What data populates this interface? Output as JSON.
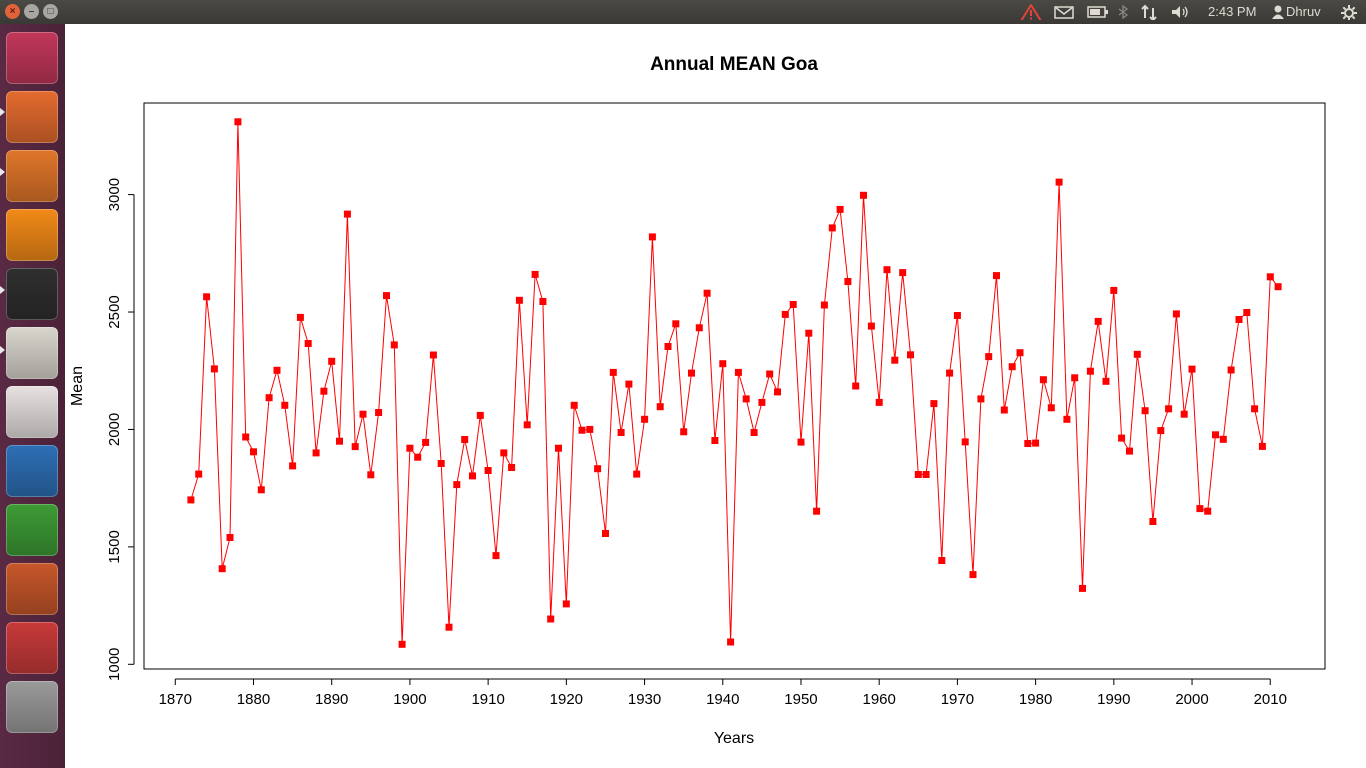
{
  "topbar": {
    "close_label": "×",
    "minimize_label": "–",
    "maximize_label": "□",
    "time": "2:43 PM",
    "user": "Dhruv",
    "indicators": [
      "warning-icon",
      "mail-icon",
      "battery-icon",
      "bluetooth-icon",
      "network-icon",
      "volume-icon",
      "gear-icon"
    ]
  },
  "launcher": {
    "items": [
      {
        "name": "ubuntu-dash-icon",
        "color": "#c1375a"
      },
      {
        "name": "files-icon",
        "color": "#e46b2f"
      },
      {
        "name": "firefox-icon",
        "color": "#e0762a"
      },
      {
        "name": "vlc-icon",
        "color": "#f28a18"
      },
      {
        "name": "terminal-icon",
        "color": "#2f2f2f"
      },
      {
        "name": "text-editor-icon",
        "color": "#d9d6cd"
      },
      {
        "name": "document-viewer-icon",
        "color": "#e7e1e1"
      },
      {
        "name": "writer-icon",
        "color": "#2d6fb5"
      },
      {
        "name": "calc-icon",
        "color": "#3d9b35"
      },
      {
        "name": "impress-icon",
        "color": "#c7572b"
      },
      {
        "name": "system-settings-icon",
        "color": "#c83a3a"
      },
      {
        "name": "help-icon",
        "color": "#9a9a9a"
      }
    ]
  },
  "chart_data": {
    "type": "line",
    "title": "Annual MEAN Goa",
    "xlabel": "Years",
    "ylabel": "Mean",
    "xlim": [
      1866,
      2017
    ],
    "ylim": [
      980,
      3390
    ],
    "xticks": [
      1870,
      1880,
      1890,
      1900,
      1910,
      1920,
      1930,
      1940,
      1950,
      1960,
      1970,
      1980,
      1990,
      2000,
      2010
    ],
    "yticks": [
      1000,
      1500,
      2000,
      2500,
      3000
    ],
    "grid": false,
    "color": "#ff0000",
    "x": [
      1872,
      1873,
      1874,
      1875,
      1876,
      1877,
      1878,
      1879,
      1880,
      1881,
      1882,
      1883,
      1884,
      1885,
      1886,
      1887,
      1888,
      1889,
      1890,
      1891,
      1892,
      1893,
      1894,
      1895,
      1896,
      1897,
      1898,
      1899,
      1900,
      1901,
      1902,
      1903,
      1904,
      1905,
      1906,
      1907,
      1908,
      1909,
      1910,
      1911,
      1912,
      1913,
      1914,
      1915,
      1916,
      1917,
      1918,
      1919,
      1920,
      1921,
      1922,
      1923,
      1924,
      1925,
      1926,
      1927,
      1928,
      1929,
      1930,
      1931,
      1932,
      1933,
      1934,
      1935,
      1936,
      1937,
      1938,
      1939,
      1940,
      1941,
      1942,
      1943,
      1944,
      1945,
      1946,
      1947,
      1948,
      1949,
      1950,
      1951,
      1952,
      1953,
      1954,
      1955,
      1956,
      1957,
      1958,
      1959,
      1960,
      1961,
      1962,
      1963,
      1964,
      1965,
      1966,
      1967,
      1968,
      1969,
      1970,
      1971,
      1972,
      1973,
      1974,
      1975,
      1976,
      1977,
      1978,
      1979,
      1980,
      1981,
      1982,
      1983,
      1984,
      1985,
      1986,
      1987,
      1988,
      1989,
      1990,
      1991,
      1992,
      1993,
      1994,
      1995,
      1996,
      1997,
      1998,
      1999,
      2000,
      2001,
      2002,
      2003,
      2004,
      2005,
      2006,
      2007,
      2008,
      2009,
      2010,
      2011
    ],
    "y": [
      1700,
      1810,
      2565,
      2258,
      1407,
      1540,
      3310,
      1968,
      1905,
      1743,
      2135,
      2252,
      2103,
      1845,
      2477,
      2366,
      1900,
      2163,
      2290,
      1950,
      2917,
      1927,
      2065,
      1807,
      2072,
      2570,
      2360,
      1085,
      1920,
      1882,
      1945,
      2317,
      1855,
      1158,
      1765,
      1957,
      1802,
      2060,
      1825,
      1463,
      1900,
      1838,
      2550,
      2020,
      2660,
      2545,
      1193,
      1920,
      1257,
      2103,
      1997,
      2000,
      1833,
      1557,
      2243,
      1987,
      2193,
      1810,
      2043,
      2820,
      2097,
      2353,
      2450,
      1990,
      2240,
      2433,
      2580,
      1953,
      2280,
      1095,
      2243,
      2130,
      1987,
      2115,
      2236,
      2160,
      2490,
      2532,
      1946,
      2410,
      1652,
      2530,
      2858,
      2937,
      2630,
      2185,
      2997,
      2440,
      2115,
      2680,
      2295,
      2668,
      2318,
      1808,
      1808,
      2110,
      1442,
      2240,
      2485,
      1947,
      1382,
      2130,
      2310,
      2655,
      2083,
      2267,
      2327,
      1940,
      1942,
      2212,
      2092,
      3053,
      2043,
      2220,
      1323,
      2248,
      2460,
      2205,
      2592,
      1963,
      1908,
      2320,
      2080,
      1608,
      1995,
      2088,
      2492,
      2065,
      2257,
      1663,
      1652,
      1977,
      1958,
      2253,
      2468,
      2498,
      2088,
      1928,
      2650,
      2608
    ]
  }
}
